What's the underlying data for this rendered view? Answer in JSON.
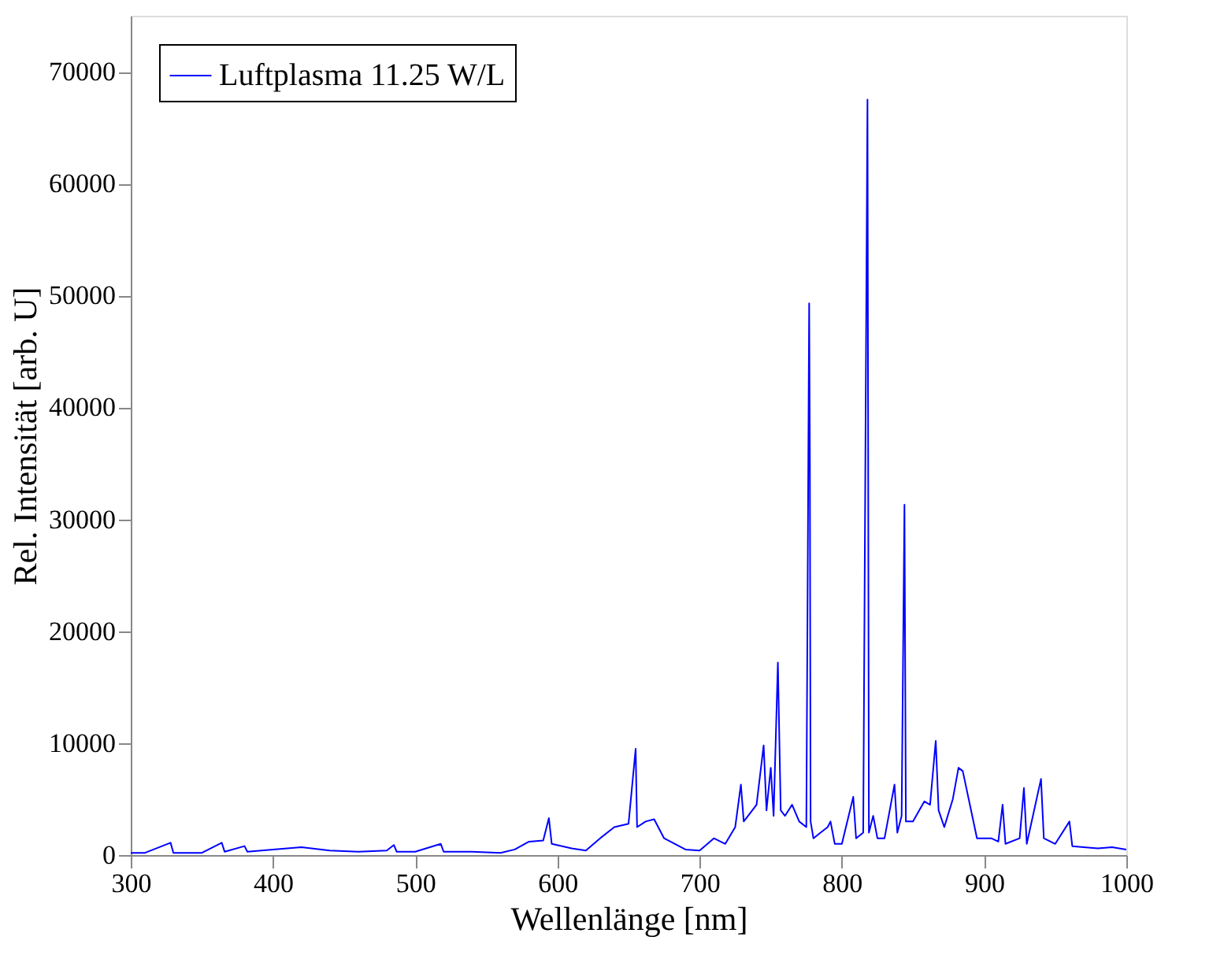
{
  "chart_data": {
    "type": "line",
    "xlabel": "Wellenlänge [nm]",
    "ylabel": "Rel. Intensität [arb. U]",
    "xlim": [
      300,
      1000
    ],
    "ylim": [
      0,
      75000
    ],
    "xticks": [
      300,
      400,
      500,
      600,
      700,
      800,
      900,
      1000
    ],
    "yticks": [
      0,
      10000,
      20000,
      30000,
      40000,
      50000,
      60000,
      70000
    ],
    "grid": false,
    "legend": "top left",
    "marker": "none",
    "line_style": "solid",
    "series": [
      {
        "name": "Luftplasma 11.25 W/L",
        "color": "#0000ff",
        "x": [
          300,
          310,
          328,
          330,
          350,
          364,
          366,
          380,
          382,
          400,
          420,
          440,
          460,
          480,
          485,
          487,
          500,
          518,
          520,
          540,
          560,
          570,
          580,
          590,
          594,
          596,
          610,
          620,
          630,
          640,
          650,
          655,
          656,
          662,
          668,
          675,
          690,
          700,
          710,
          718,
          725,
          729,
          731,
          740,
          745,
          747,
          750,
          752,
          755,
          757,
          760,
          765,
          770,
          775,
          777,
          777.5,
          778,
          780,
          785,
          790,
          792,
          795,
          800,
          808,
          810,
          815,
          818,
          819,
          822,
          825,
          830,
          837,
          839,
          842,
          844,
          845,
          850,
          858,
          862,
          866,
          868,
          872,
          878,
          882,
          885,
          890,
          895,
          905,
          910,
          913,
          915,
          925,
          928,
          930,
          940,
          942,
          950,
          960,
          962,
          970,
          980,
          990,
          1000
        ],
        "values": [
          200,
          200,
          1100,
          200,
          200,
          1100,
          300,
          800,
          300,
          500,
          700,
          400,
          300,
          400,
          900,
          300,
          300,
          1000,
          300,
          300,
          200,
          500,
          1200,
          1300,
          3300,
          1000,
          600,
          400,
          1500,
          2500,
          2800,
          9500,
          2500,
          3000,
          3200,
          1500,
          500,
          400,
          1500,
          1000,
          2500,
          6300,
          3000,
          4500,
          9800,
          4000,
          7800,
          3500,
          17200,
          4000,
          3500,
          4500,
          3000,
          2500,
          49300,
          35000,
          3000,
          1500,
          2000,
          2500,
          3000,
          1000,
          1000,
          5200,
          1500,
          2000,
          67500,
          2000,
          3500,
          1500,
          1500,
          6300,
          2000,
          3500,
          31300,
          3000,
          3000,
          4800,
          4500,
          10200,
          4000,
          2500,
          5000,
          7800,
          7500,
          4500,
          1500,
          1500,
          1200,
          4500,
          1000,
          1500,
          6000,
          1000,
          6800,
          1500,
          1000,
          3000,
          800,
          700,
          600,
          700,
          500
        ]
      }
    ]
  }
}
